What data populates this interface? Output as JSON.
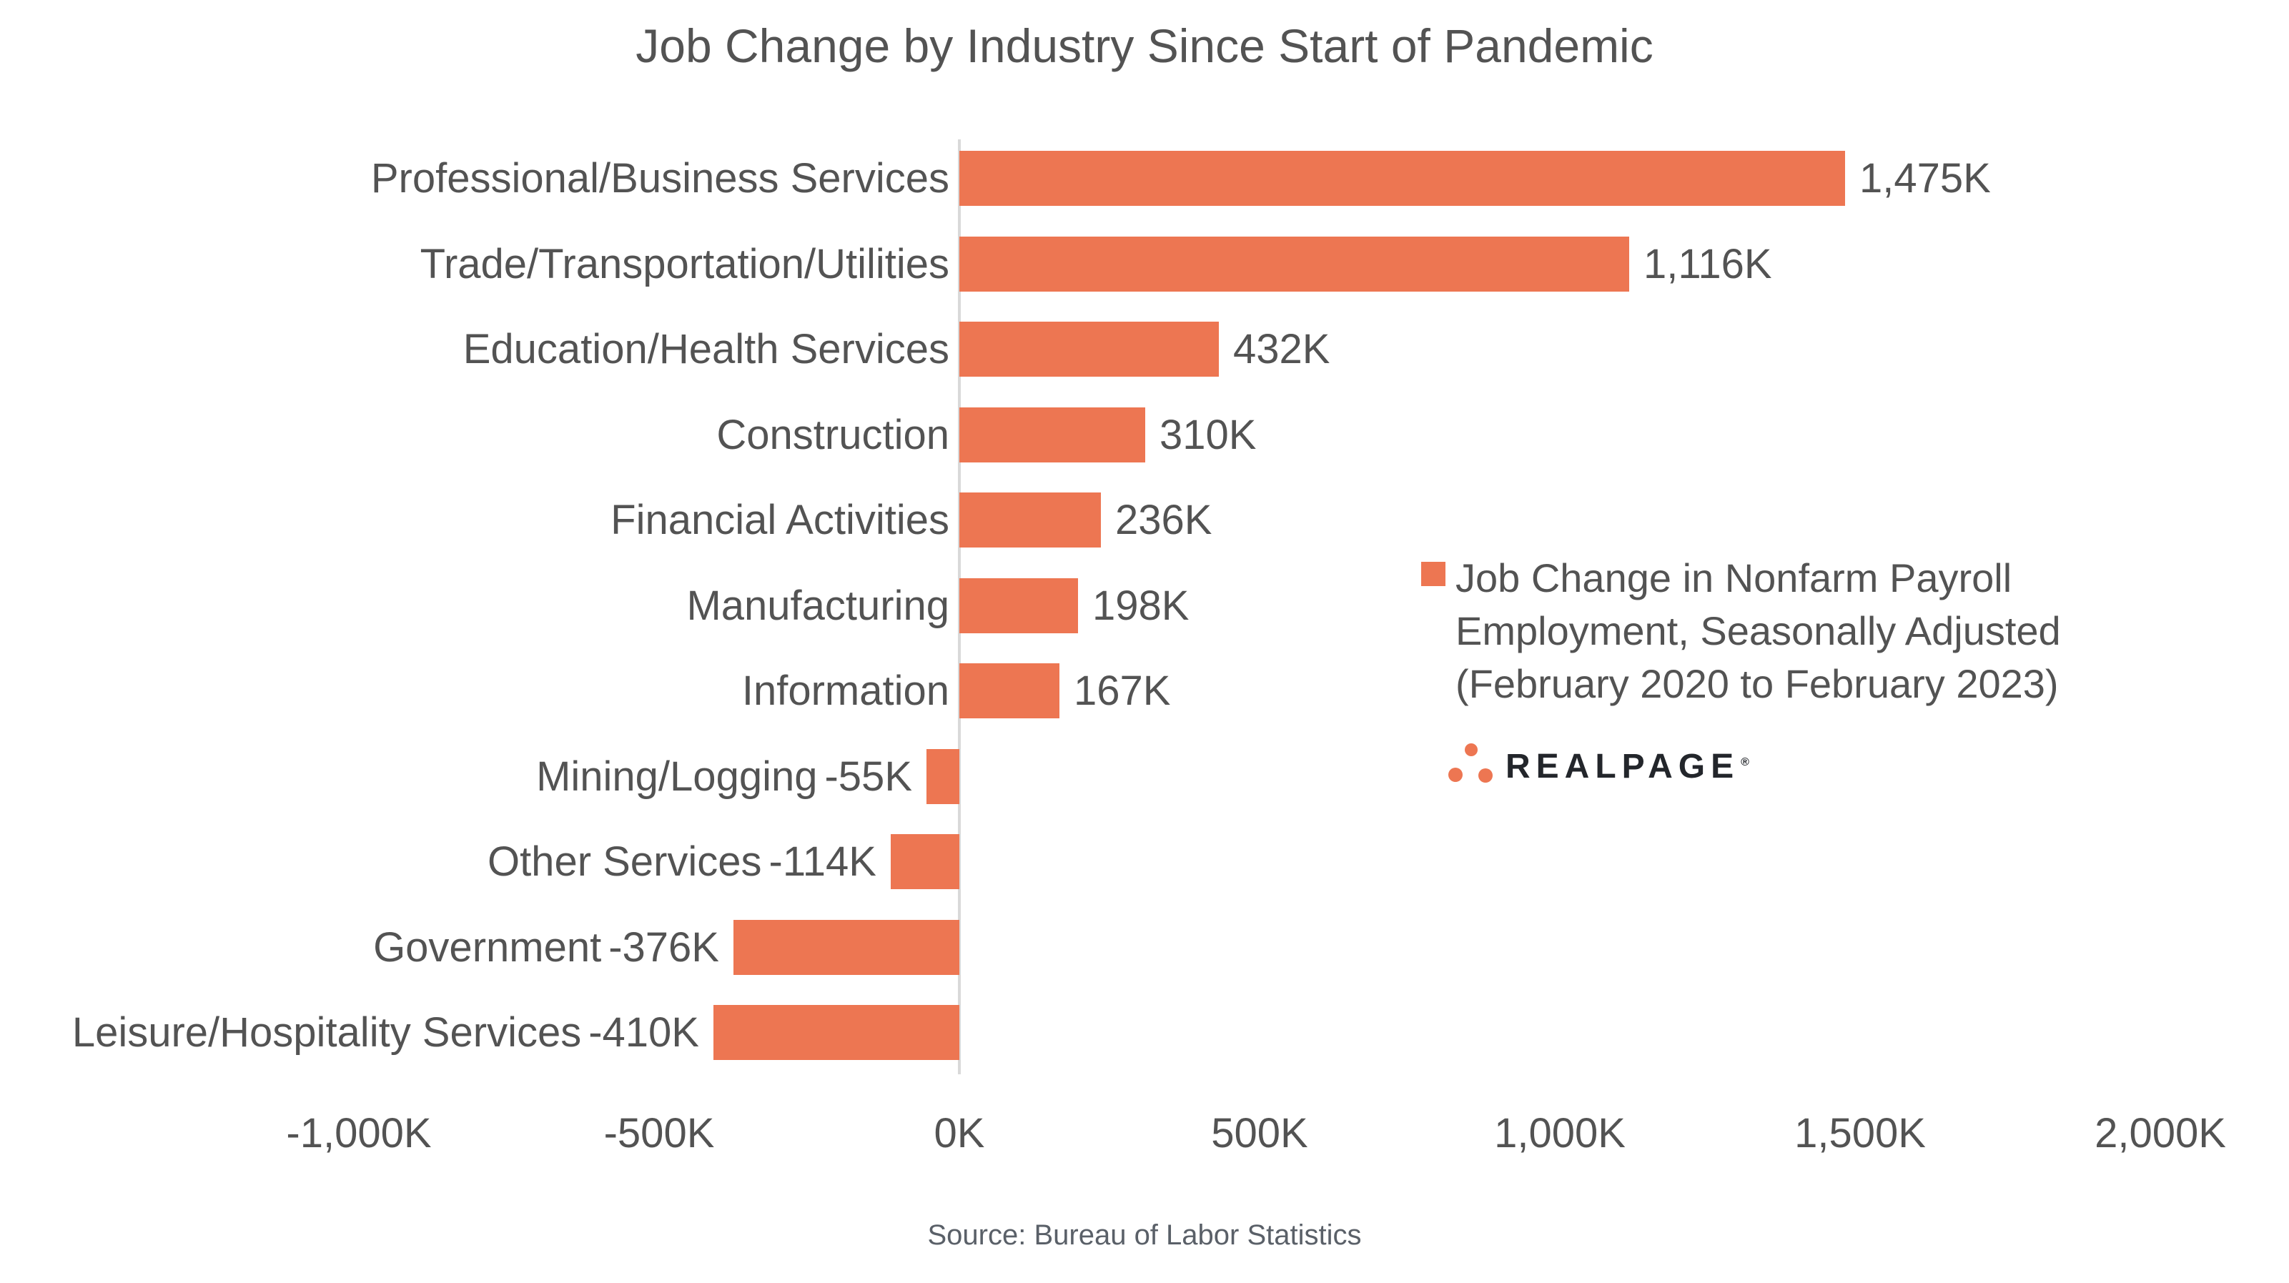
{
  "title": "Job Change by Industry Since Start of Pandemic",
  "source_note": "Source: Bureau of Labor Statistics",
  "legend": {
    "lines": [
      "Job Change in Nonfarm Payroll",
      "Employment, Seasonally Adjusted",
      "(February 2020 to February 2023)"
    ]
  },
  "branding": {
    "logo_text": "REALPAGE",
    "registered_mark": "®"
  },
  "colors": {
    "bar": "#ED7652",
    "text_gray": "#535353",
    "axis_line": "#D9D9D9",
    "source_text": "#5A6068",
    "logo_text": "#23262B",
    "logo_dots": "#ED7652",
    "background": "#FFFFFF"
  },
  "chart_data": {
    "type": "bar",
    "orientation": "horizontal",
    "title": "Job Change by Industry Since Start of Pandemic",
    "series": [
      {
        "name": "Job Change in Nonfarm Payroll Employment, Seasonally Adjusted (February 2020 to February 2023)",
        "color": "#ED7652"
      }
    ],
    "categories": [
      "Professional/Business Services",
      "Trade/Transportation/Utilities",
      "Education/Health Services",
      "Construction",
      "Financial Activities",
      "Manufacturing",
      "Information",
      "Mining/Logging",
      "Other Services",
      "Government",
      "Leisure/Hospitality Services"
    ],
    "values": [
      1475,
      1116,
      432,
      310,
      236,
      198,
      167,
      -55,
      -114,
      -376,
      -410
    ],
    "value_labels": [
      "1,475K",
      "1,116K",
      "432K",
      "310K",
      "236K",
      "198K",
      "167K",
      "-55K",
      "-114K",
      "-376K",
      "-410K"
    ],
    "unit": "K",
    "x_ticks": [
      "-1,000K",
      "-500K",
      "0K",
      "500K",
      "1,000K",
      "1,500K",
      "2,000K"
    ],
    "x_tick_values": [
      -1000,
      -500,
      0,
      500,
      1000,
      1500,
      2000
    ],
    "xlim": [
      -1000,
      2000
    ],
    "grid": false,
    "value_label_position": "outside-end",
    "legend_position": "center-right"
  }
}
